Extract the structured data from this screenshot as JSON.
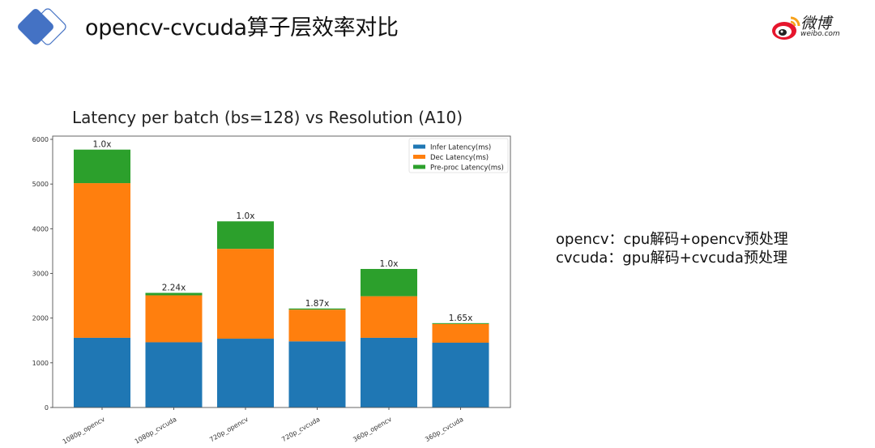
{
  "header": {
    "title": "opencv-cvcuda算子层效率对比",
    "logo_icon": "diamond-logo-icon",
    "brand": {
      "name": "微博",
      "domain": "weibo.com",
      "icon": "weibo-eye-icon"
    }
  },
  "notes": [
    "opencv：cpu解码+opencv预处理",
    "cvcuda：gpu解码+cvcuda预处理"
  ],
  "colors": {
    "infer": "#1f77b4",
    "dec": "#ff7f0e",
    "preproc": "#2ca02c",
    "logo_blue": "#4472c4",
    "weibo_red": "#e6162d",
    "weibo_orange": "#f7a21b"
  },
  "chart_data": {
    "type": "bar",
    "stacked": true,
    "title": "Latency per batch (bs=128) vs Resolution (A10)",
    "xlabel": "",
    "ylabel": "",
    "ylim": [
      0,
      6000
    ],
    "yticks": [
      0,
      1000,
      2000,
      3000,
      4000,
      5000,
      6000
    ],
    "grid": false,
    "legend_position": "upper right",
    "categories": [
      "1080p_opencv",
      "1080p_cvcuda",
      "720p_opencv",
      "720p_cvcuda",
      "360p_opencv",
      "360p_cvcuda"
    ],
    "series": [
      {
        "name": "Infer Latency(ms)",
        "color": "#1f77b4",
        "values": [
          1560,
          1460,
          1540,
          1480,
          1560,
          1450
        ]
      },
      {
        "name": "Dec Latency(ms)",
        "color": "#ff7f0e",
        "values": [
          3460,
          1050,
          2010,
          710,
          930,
          420
        ]
      },
      {
        "name": "Pre-proc Latency(ms)",
        "color": "#2ca02c",
        "values": [
          750,
          55,
          615,
          25,
          610,
          18
        ]
      }
    ],
    "totals": [
      5770,
      2565,
      4165,
      2215,
      3100,
      1888
    ],
    "annotations": [
      "1.0x",
      "2.24x",
      "1.0x",
      "1.87x",
      "1.0x",
      "1.65x"
    ]
  }
}
